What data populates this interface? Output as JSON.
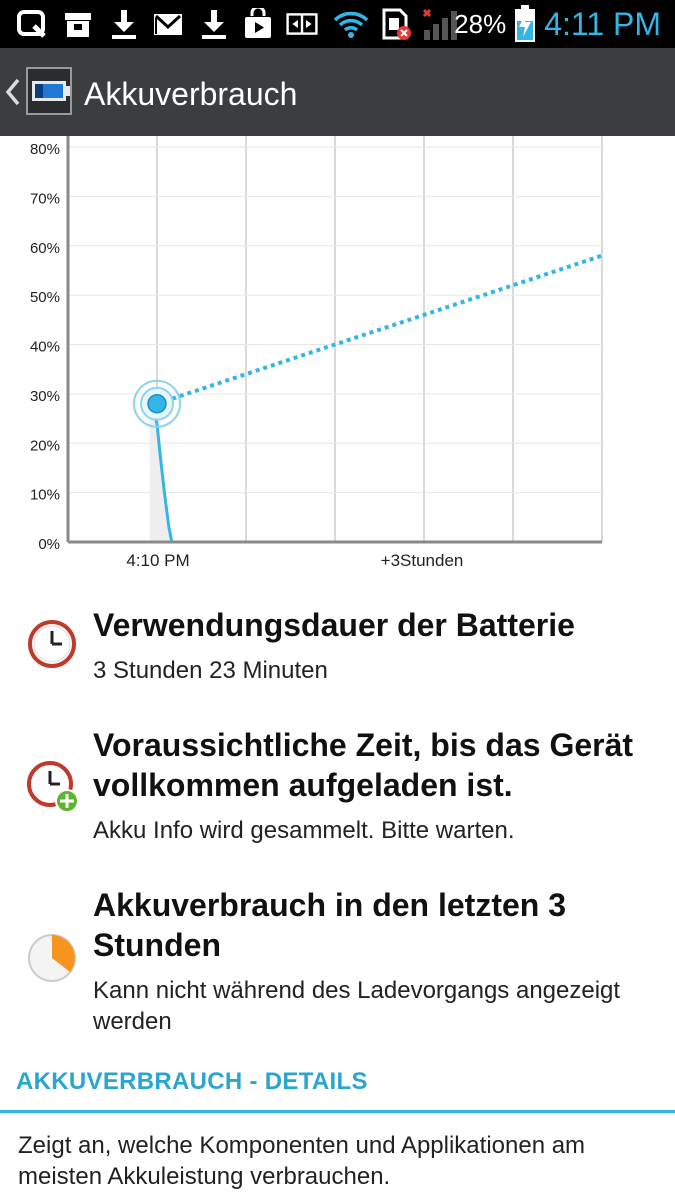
{
  "status_bar": {
    "battery_percent": "28%",
    "time": "4:11 PM",
    "icons": [
      "search-icon",
      "archive-icon",
      "download-icon",
      "gmail-icon",
      "download-icon",
      "play-store-icon",
      "sync-icon",
      "wifi-icon",
      "sim-error-icon",
      "signal-icon",
      "battery-charging-icon"
    ]
  },
  "header": {
    "title": "Akkuverbrauch"
  },
  "chart_data": {
    "type": "line",
    "yticks": [
      "80%",
      "70%",
      "60%",
      "50%",
      "40%",
      "30%",
      "20%",
      "10%",
      "0%"
    ],
    "ylim": [
      0,
      80
    ],
    "xticks": [
      "4:10 PM",
      "+3Stunden"
    ],
    "series": [
      {
        "style": "solid",
        "points": [
          [
            -0.05,
            29
          ],
          [
            0,
            24
          ],
          [
            0.02,
            18
          ],
          [
            0.05,
            10
          ],
          [
            0.08,
            3
          ],
          [
            0.1,
            0
          ]
        ]
      },
      {
        "style": "dotted",
        "points": [
          [
            0,
            28
          ],
          [
            3,
            58
          ]
        ]
      }
    ],
    "current_marker": {
      "x": 0,
      "y": 28
    },
    "colors": {
      "line": "#33b5e5",
      "fill": "#eeeeee",
      "grid": "#d9d9d9",
      "axis": "#8a8a8a"
    }
  },
  "rows": [
    {
      "title": "Verwendungsdauer der Batterie",
      "subtitle": "3 Stunden 23 Minuten",
      "icon": "clock-icon"
    },
    {
      "title": "Voraussichtliche Zeit, bis das Gerät vollkommen aufgeladen ist.",
      "subtitle": "Akku Info wird gesammelt. Bitte warten.",
      "icon": "clock-plus-icon"
    },
    {
      "title": "Akkuverbrauch in den letzten 3 Stunden",
      "subtitle": "Kann nicht während des Ladevorgangs angezeigt werden",
      "icon": "pie-chart-icon"
    }
  ],
  "details": {
    "header": "AKKUVERBRAUCH - DETAILS",
    "text": "Zeigt an, welche Komponenten und Applikationen am meisten Akkuleistung verbrauchen."
  }
}
